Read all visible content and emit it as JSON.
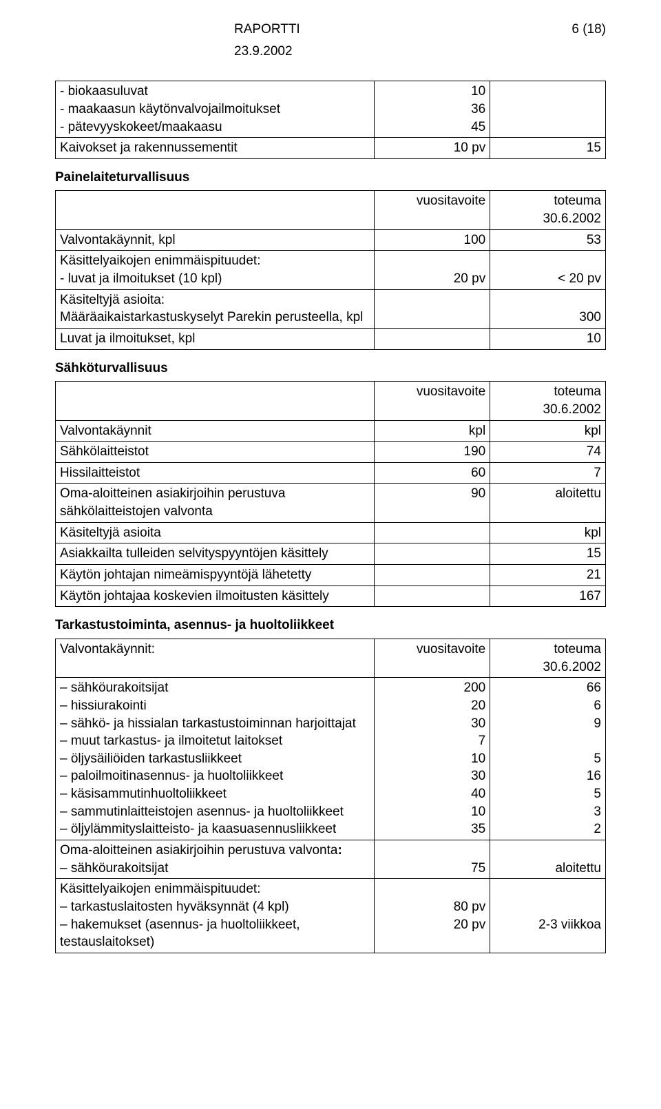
{
  "header": {
    "title": "RAPORTTI",
    "page": "6 (18)",
    "date": "23.9.2002"
  },
  "table1": {
    "rows": {
      "biokaasu": {
        "label": "biokaasuluvat",
        "val": "10"
      },
      "maakaasu": {
        "label": "maakaasun käytönvalvojailmoitukset",
        "val": "36"
      },
      "patevyys": {
        "label": "pätevyyskokeet/maakaasu",
        "val": "45"
      },
      "kaivokset": {
        "label": "Kaivokset ja rakennussementit",
        "c1": "10 pv",
        "c2": "15"
      }
    }
  },
  "paine": {
    "title": "Painelaiteturvallisuus",
    "colhead1": "vuositavoite",
    "colhead2": "toteuma 30.6.2002",
    "valvonta": {
      "label": "Valvontakäynnit, kpl",
      "c1": "100",
      "c2": "53"
    },
    "kasittely_head": "Käsittelyaikojen enimmäispituudet:",
    "luvat": {
      "label": "- luvat ja ilmoitukset (10 kpl)",
      "c1": "20 pv",
      "c2": "< 20 pv"
    },
    "kasiteltyja": "Käsiteltyjä asioita:",
    "maara": {
      "label": "Määräaikaistarkastuskyselyt Parekin perusteella, kpl",
      "c2": "300"
    },
    "luvatja": {
      "label": "Luvat ja ilmoitukset, kpl",
      "c2": "10"
    }
  },
  "sahko": {
    "title": "Sähköturvallisuus",
    "colhead1": "vuositavoite",
    "colhead2": "toteuma 30.6.2002",
    "valvonta": {
      "label": "Valvontakäynnit",
      "c1": "kpl",
      "c2": "kpl"
    },
    "sahkolait": {
      "label": "Sähkölaitteistot",
      "c1": "190",
      "c2": "74"
    },
    "hissi": {
      "label": "Hissilaitteistot",
      "c1": "60",
      "c2": "7"
    },
    "oma": {
      "label": "Oma-aloitteinen asiakirjoihin perustuva sähkölaitteistojen valvonta",
      "c1": "90",
      "c2": "aloitettu"
    },
    "kasiteltyja": {
      "label": "Käsiteltyjä asioita",
      "c2": "kpl"
    },
    "asiakkailta": {
      "label": "Asiakkailta tulleiden selvityspyyntöjen käsittely",
      "c2": "15"
    },
    "kayton": {
      "label": "Käytön johtajan nimeämispyyntöjä lähetetty",
      "c2": "21"
    },
    "kayton2": {
      "label": "Käytön johtajaa koskevien ilmoitusten käsittely",
      "c2": "167"
    }
  },
  "tarkastus": {
    "title": "Tarkastustoiminta, asennus- ja huoltoliikkeet",
    "valvonta_label": "Valvontakäynnit:",
    "colhead1": "vuositavoite",
    "colhead2": "toteuma 30.6.2002",
    "items": {
      "sahkourak": {
        "label": "sähköurakoitsijat",
        "c1": "200",
        "c2": "66"
      },
      "hissiurak": {
        "label": "hissiurakointi",
        "c1": "20",
        "c2": "6"
      },
      "sahkohissi": {
        "label": "sähkö- ja hissialan tarkastustoiminnan harjoittajat",
        "c1": "30",
        "c2": "9"
      },
      "muut": {
        "label": "muut tarkastus- ja ilmoitetut laitokset",
        "c1": "7",
        "c2": ""
      },
      "oljys": {
        "label": "öljysäiliöiden tarkastusliikkeet",
        "c1": "10",
        "c2": "5"
      },
      "paloilm": {
        "label": "paloilmoitinasennus- ja huoltoliikkeet",
        "c1": "30",
        "c2": "16"
      },
      "kasisam": {
        "label": "käsisammutinhuoltoliikkeet",
        "c1": "40",
        "c2": "5"
      },
      "sammutin": {
        "label": "sammutinlaitteistojen asennus- ja huoltoliikkeet",
        "c1": "10",
        "c2": "3"
      },
      "oljyl": {
        "label": "öljylämmityslaitteisto- ja kaasuasennusliikkeet",
        "c1": "35",
        "c2": "2"
      }
    },
    "oma_label": "Oma-aloitteinen asiakirjoihin perustuva valvonta",
    "oma_item": {
      "label": "sähköurakoitsijat",
      "c1": "75",
      "c2": "aloitettu"
    },
    "kasittely_head": "Käsittelyaikojen enimmäispituudet:",
    "tarkl": {
      "label": "tarkastuslaitosten hyväksynnät (4 kpl)",
      "c1": "80 pv",
      "c2": ""
    },
    "hakem": {
      "label": "hakemukset (asennus- ja huoltoliikkeet, testauslaitokset)",
      "c1": "20 pv",
      "c2": "2-3 viikkoa"
    }
  }
}
